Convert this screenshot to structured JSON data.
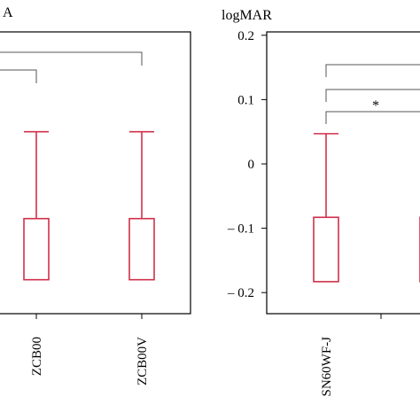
{
  "chart_data": [
    {
      "type": "box",
      "title": "",
      "ylabel_fragment": "A",
      "categories": [
        "ZCB00",
        "ZCB00V"
      ],
      "series": [
        {
          "color": "#d0304a",
          "boxes": [
            {
              "category": "ZCB00",
              "whisker_high": 0.05,
              "q3": -0.085,
              "q1": -0.18
            },
            {
              "category": "ZCB00V",
              "whisker_high": 0.05,
              "q3": -0.085,
              "q1": -0.18
            }
          ]
        }
      ],
      "brackets": [
        {
          "from": "left-edge",
          "to": "ZCB00",
          "label": ""
        },
        {
          "from": "left-edge",
          "to": "ZCB00V",
          "label": ""
        }
      ],
      "ylim": [
        -0.22,
        0.22
      ]
    },
    {
      "type": "box",
      "title": "",
      "ylabel": "logMAR",
      "yticks": [
        "0.2",
        "0.1",
        "0",
        "– 0.1",
        "– 0.2"
      ],
      "ytick_values": [
        0.2,
        0.1,
        0,
        -0.1,
        -0.2
      ],
      "ylim": [
        -0.22,
        0.22
      ],
      "categories": [
        "SN60WF-J"
      ],
      "series": [
        {
          "color": "#d0304a",
          "boxes": [
            {
              "category": "SN60WF-J",
              "whisker_high": 0.047,
              "q3": -0.083,
              "q1": -0.183
            },
            {
              "category": "partial-right",
              "whisker_high": 0.047,
              "q3": -0.083,
              "q1": -0.183
            }
          ]
        }
      ],
      "brackets": [
        {
          "level": 1,
          "label": ""
        },
        {
          "level": 2,
          "label": ""
        },
        {
          "level": 3,
          "label": "*"
        }
      ]
    }
  ]
}
